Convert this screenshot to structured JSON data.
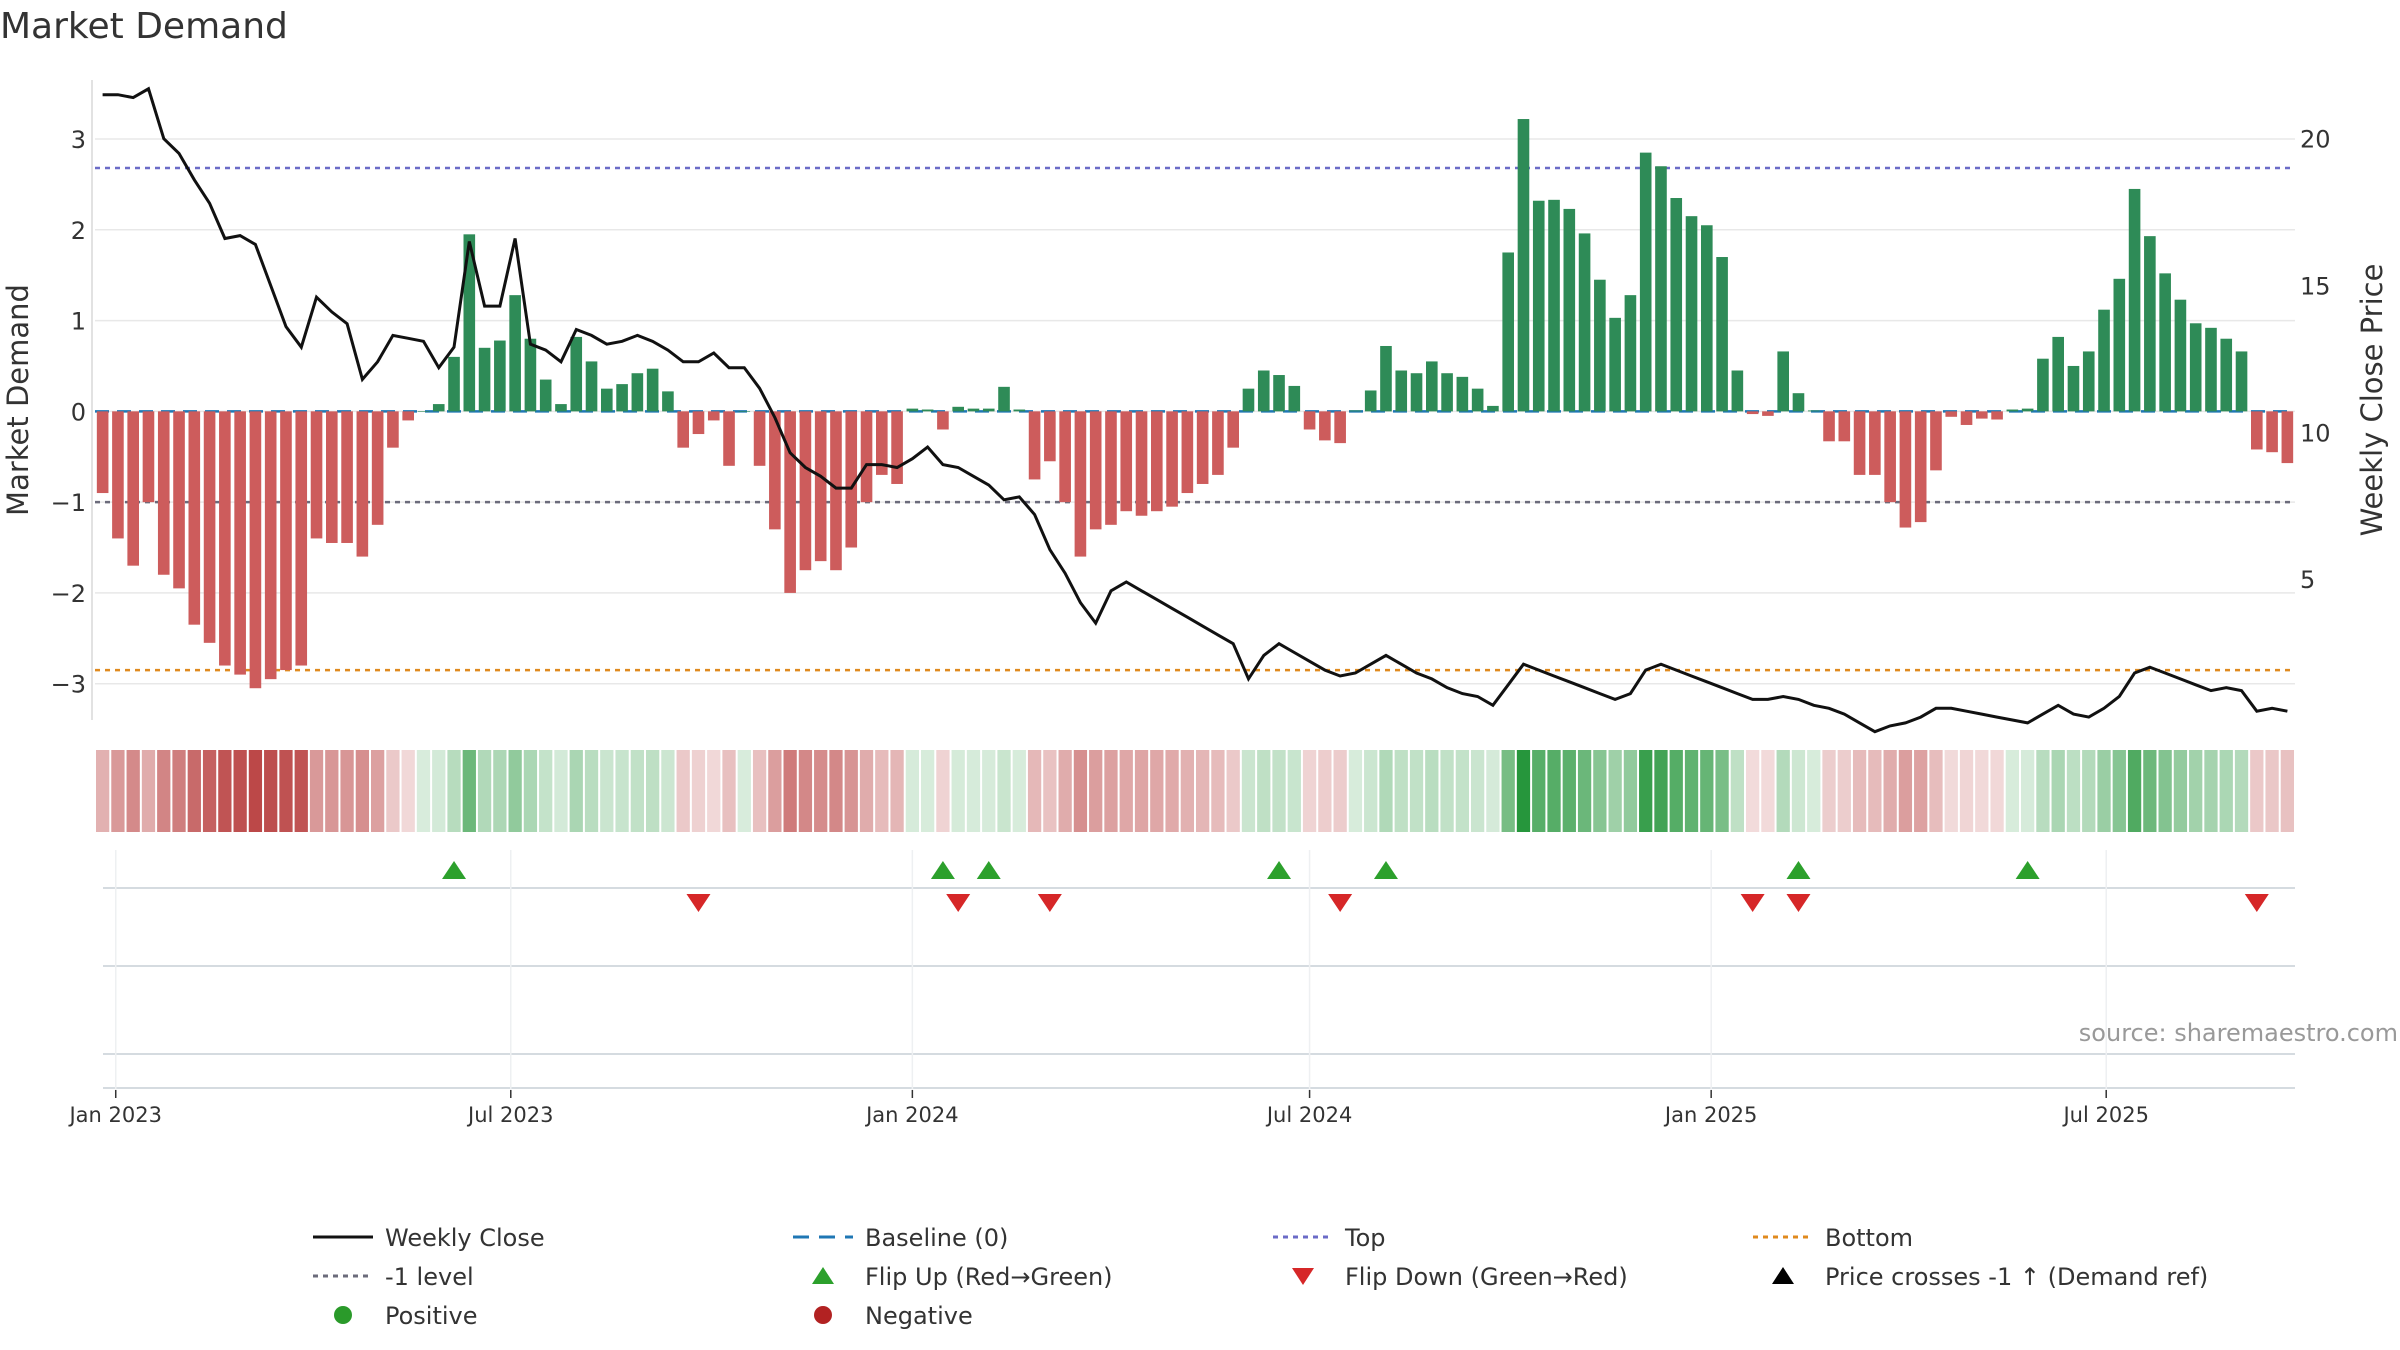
{
  "chart_data": {
    "type": "bar",
    "title": "Market Demand",
    "ylabel": "Market Demand",
    "y2label": "Weekly Close Price",
    "source": "source: sharemaestro.com",
    "start_date": "2022-12-26",
    "frequency": "weekly",
    "ylim": [
      -3.4,
      3.65
    ],
    "y2lim": [
      0.2,
      22.0
    ],
    "yticks": [
      3,
      2,
      1,
      0,
      -1,
      -2,
      -3
    ],
    "yticklabels": [
      "3",
      "2",
      "1",
      "0",
      "−1",
      "−2",
      "−3"
    ],
    "y2ticks": [
      20,
      15,
      10,
      5
    ],
    "y2ticklabels": [
      "20",
      "15",
      "10",
      "5"
    ],
    "xticks": [
      "2023-01-01",
      "2023-07-01",
      "2024-01-01",
      "2024-07-01",
      "2025-01-01",
      "2025-07-01"
    ],
    "xticklabels": [
      "Jan 2023",
      "Jul 2023",
      "Jan 2024",
      "Jul 2024",
      "Jan 2025",
      "Jul 2025"
    ],
    "reference_lines": {
      "baseline": 0,
      "top": 2.68,
      "minus_one": -1.0,
      "bottom": -2.85
    },
    "series": [
      {
        "name": "Market Demand",
        "values": [
          -0.9,
          -1.4,
          -1.7,
          -1.0,
          -1.8,
          -1.95,
          -2.35,
          -2.55,
          -2.8,
          -2.9,
          -3.05,
          -2.95,
          -2.85,
          -2.8,
          -1.4,
          -1.45,
          -1.45,
          -1.6,
          -1.25,
          -0.4,
          -0.1,
          0.0,
          0.08,
          0.6,
          1.95,
          0.7,
          0.78,
          1.28,
          0.8,
          0.35,
          0.08,
          0.82,
          0.55,
          0.25,
          0.3,
          0.42,
          0.47,
          0.22,
          -0.4,
          -0.25,
          -0.1,
          -0.6,
          0.0,
          -0.6,
          -1.3,
          -2.0,
          -1.75,
          -1.65,
          -1.75,
          -1.5,
          -1.0,
          -0.7,
          -0.8,
          0.03,
          0.02,
          -0.2,
          0.05,
          0.03,
          0.03,
          0.27,
          0.02,
          -0.75,
          -0.55,
          -1.0,
          -1.6,
          -1.3,
          -1.25,
          -1.1,
          -1.15,
          -1.1,
          -1.05,
          -0.9,
          -0.8,
          -0.7,
          -0.4,
          0.25,
          0.45,
          0.4,
          0.28,
          -0.2,
          -0.32,
          -0.35,
          0.01,
          0.23,
          0.72,
          0.45,
          0.42,
          0.55,
          0.42,
          0.38,
          0.25,
          0.06,
          1.75,
          3.22,
          2.32,
          2.33,
          2.23,
          1.96,
          1.45,
          1.03,
          1.28,
          2.85,
          2.7,
          2.35,
          2.15,
          2.05,
          1.7,
          0.45,
          -0.03,
          -0.05,
          0.66,
          0.2,
          0.01,
          -0.33,
          -0.33,
          -0.7,
          -0.7,
          -1.0,
          -1.28,
          -1.22,
          -0.65,
          -0.06,
          -0.15,
          -0.08,
          -0.09,
          0.02,
          0.03,
          0.58,
          0.82,
          0.5,
          0.66,
          1.12,
          1.46,
          2.45,
          1.93,
          1.52,
          1.23,
          0.97,
          0.92,
          0.8,
          0.66,
          -0.42,
          -0.45,
          -0.57
        ]
      },
      {
        "name": "Weekly Close",
        "values": [
          21.5,
          21.5,
          21.4,
          21.7,
          20.0,
          19.5,
          18.6,
          17.8,
          16.6,
          16.7,
          16.4,
          15.0,
          13.6,
          12.9,
          14.6,
          14.1,
          13.7,
          11.8,
          12.4,
          13.3,
          13.2,
          13.1,
          12.2,
          12.9,
          16.5,
          14.3,
          14.3,
          16.6,
          13.0,
          12.8,
          12.4,
          13.5,
          13.3,
          13.0,
          13.1,
          13.3,
          13.1,
          12.8,
          12.4,
          12.4,
          12.7,
          12.2,
          12.2,
          11.5,
          10.5,
          9.3,
          8.8,
          8.5,
          8.1,
          8.1,
          8.9,
          8.9,
          8.8,
          9.1,
          9.5,
          8.9,
          8.8,
          8.5,
          8.2,
          7.7,
          7.8,
          7.2,
          6.0,
          5.2,
          4.2,
          3.5,
          4.6,
          4.9,
          4.6,
          4.3,
          4.0,
          3.7,
          3.4,
          3.1,
          2.8,
          1.6,
          2.4,
          2.8,
          2.5,
          2.2,
          1.9,
          1.7,
          1.8,
          2.1,
          2.4,
          2.1,
          1.8,
          1.6,
          1.3,
          1.1,
          1.0,
          0.7,
          1.4,
          2.1,
          1.9,
          1.7,
          1.5,
          1.3,
          1.1,
          0.9,
          1.1,
          1.9,
          2.1,
          1.9,
          1.7,
          1.5,
          1.3,
          1.1,
          0.9,
          0.9,
          1.0,
          0.9,
          0.7,
          0.6,
          0.4,
          0.1,
          -0.2,
          0.0,
          0.1,
          0.3,
          0.6,
          0.6,
          0.5,
          0.4,
          0.3,
          0.2,
          0.1,
          0.4,
          0.7,
          0.4,
          0.3,
          0.6,
          1.0,
          1.8,
          2.0,
          1.8,
          1.6,
          1.4,
          1.2,
          1.3,
          1.2,
          0.5,
          0.6,
          0.5
        ]
      }
    ],
    "flip_up_weeks": [
      23,
      55,
      58,
      77,
      84,
      111,
      126
    ],
    "flip_down_weeks": [
      39,
      56,
      62,
      81,
      108,
      111,
      141
    ],
    "legend": {
      "placement": "bottom",
      "entries": [
        {
          "label": "Weekly Close",
          "marker": "solid-line",
          "color": "#111111"
        },
        {
          "label": "Baseline (0)",
          "marker": "dashed-line",
          "color": "#1f77b4"
        },
        {
          "label": "Top",
          "marker": "dotted-line",
          "color": "#6b6bc7"
        },
        {
          "label": "Bottom",
          "marker": "dotted-line",
          "color": "#e08a1e"
        },
        {
          "label": "-1 level",
          "marker": "dotted-line",
          "color": "#6b6b7b"
        },
        {
          "label": "Flip Up (Red→Green)",
          "marker": "triangle-up",
          "color": "#2ca02c"
        },
        {
          "label": "Flip Down (Green→Red)",
          "marker": "triangle-down",
          "color": "#d62728"
        },
        {
          "label": "Price crosses -1 ↑ (Demand ref)",
          "marker": "triangle-up",
          "color": "#000000"
        },
        {
          "label": "Positive",
          "marker": "circle",
          "color": "#2a9a2a"
        },
        {
          "label": "Negative",
          "marker": "circle",
          "color": "#b22222"
        }
      ]
    },
    "colors": {
      "positive": "#2e8b57",
      "negative": "#cd5c5c",
      "line": "#111111",
      "grid": "#e8e8e8"
    }
  }
}
